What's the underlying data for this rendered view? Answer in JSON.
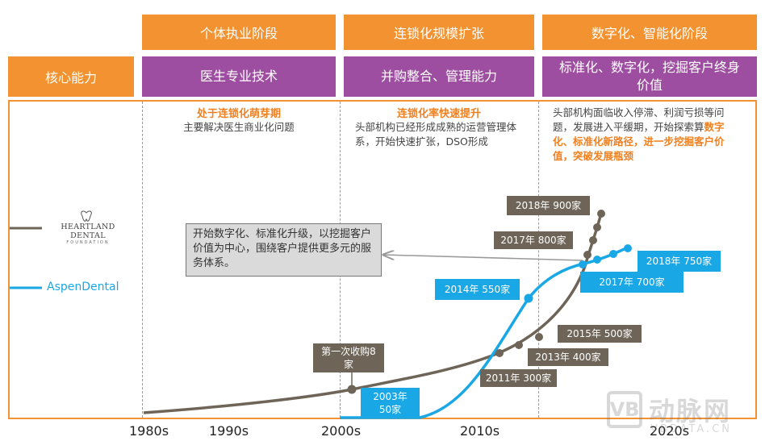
{
  "top_title": "",
  "phases": [
    "个体执业阶段",
    "连锁化规模扩张",
    "数字化、智能化阶段"
  ],
  "core": {
    "label": "核心能力",
    "cells": [
      "医生专业技术",
      "并购整合、管理能力",
      "标准化、数字化，挖掘客户终身价值"
    ]
  },
  "descriptions": {
    "p1_title": "处于连锁化萌芽期",
    "p1_text": "主要解决医生商业化问题",
    "p2_title": "连锁化率快速提升",
    "p2_text": "头部机构已经形成成熟的运营管理体系，开始快速扩张，DSO形成",
    "p3_text": "头部机构面临收入停滞、利润亏损等问题，发展进入平缓期，开始探索算",
    "p3_highlight": "数字化、标准化新路径，进一步挖掘客户价值，突破发展瓶颈"
  },
  "note": "开始数字化、标准化升级，以挖掘客户价值为中心，围绕客户提供更多元的服务体系。",
  "legend": {
    "heartland": "HEARTLAND DENTAL",
    "heartland_sub": "FOUNDATION",
    "aspen": "AspenDental"
  },
  "axis_labels": [
    "1980s",
    "1990s",
    "2000s",
    "2010s",
    "2020s"
  ],
  "heartland_labels": [
    "第一次收购8家",
    "2011年 300家",
    "2013年 400家",
    "2015年 500家",
    "2017年 800家",
    "2018年 900家"
  ],
  "aspen_labels": [
    "2003年50家",
    "2014年 550家",
    "2017年 700家",
    "2018年 750家"
  ],
  "watermark": {
    "brand": "动脉网",
    "url": "VBDATA.CN"
  },
  "colors": {
    "orange": "#F39230",
    "purple": "#9E4EA1",
    "brown": "#6E6558",
    "blue": "#1AA7E6"
  }
}
